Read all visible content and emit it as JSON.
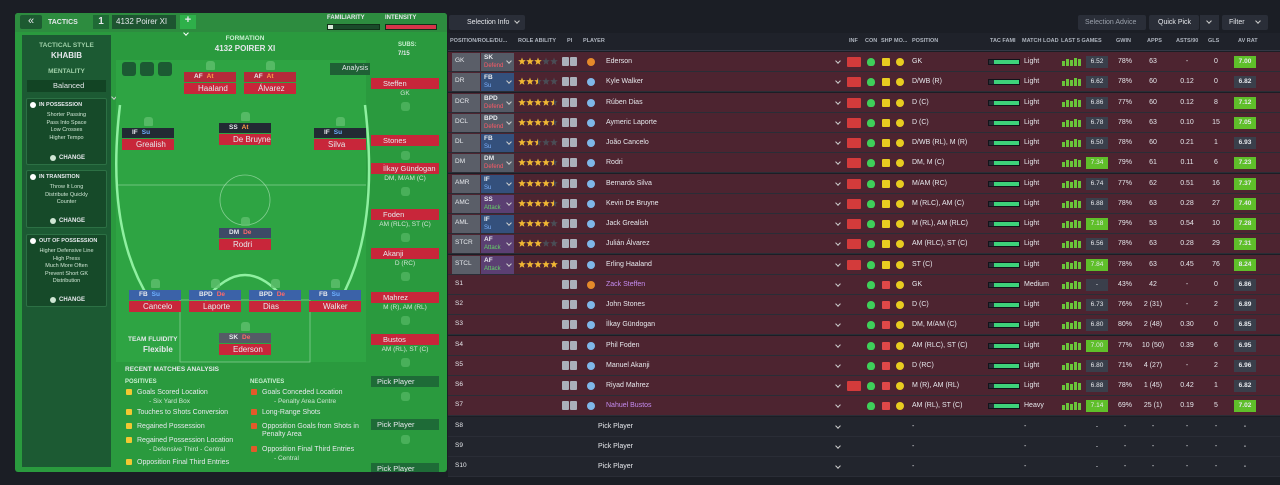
{
  "header": {
    "back": "«",
    "tactics": "TACTICS",
    "slot": "1",
    "tactic": "4132 Poirer XI",
    "add": "+",
    "familiarity": "FAMILIARITY",
    "intensity": "INTENSITY"
  },
  "sidebar": {
    "style_label": "TACTICAL STYLE",
    "style": "KHABIB",
    "mentality_label": "MENTALITY",
    "mentality": "Balanced",
    "phases": [
      {
        "title": "IN POSSESSION",
        "items": [
          "Shorter Passing",
          "Pass Into Space",
          "Low Crosses",
          "Higher Tempo"
        ],
        "button": "CHANGE"
      },
      {
        "title": "IN TRANSITION",
        "items": [
          "Throw It Long",
          "Distribute Quickly",
          "Counter"
        ],
        "button": "CHANGE"
      },
      {
        "title": "OUT OF POSSESSION",
        "items": [
          "Higher Defensive Line",
          "High Press",
          "Much More Often",
          "Prevent Short GK",
          "Distribution"
        ],
        "button": "CHANGE"
      }
    ]
  },
  "pitch": {
    "label": "FORMATION",
    "name": "4132 POIRER XI",
    "analysis": "Analysis",
    "subs_label": "SUBS:",
    "subs_count": "7/15",
    "players": [
      {
        "role": "AF",
        "duty": "At",
        "name": "Haaland"
      },
      {
        "role": "AF",
        "duty": "At",
        "name": "Álvarez"
      },
      {
        "role": "IF",
        "duty": "Su",
        "name": "Grealish"
      },
      {
        "role": "SS",
        "duty": "At",
        "name": "De Bruyne"
      },
      {
        "role": "IF",
        "duty": "Su",
        "name": "Silva"
      },
      {
        "role": "DM",
        "duty": "De",
        "name": "Rodri"
      },
      {
        "role": "FB",
        "duty": "Su",
        "name": "Cancelo"
      },
      {
        "role": "BPD",
        "duty": "De",
        "name": "Laporte"
      },
      {
        "role": "BPD",
        "duty": "De",
        "name": "Dias"
      },
      {
        "role": "FB",
        "duty": "Su",
        "name": "Walker"
      },
      {
        "role": "SK",
        "duty": "De",
        "name": "Ederson"
      }
    ],
    "subs": [
      {
        "name": "Steffen",
        "position": "GK"
      },
      {
        "name": "Stones"
      },
      {
        "name": "İlkay Gündogan",
        "position": "DM, M/AM (C)"
      },
      {
        "name": "Foden",
        "position": "AM (RLC), ST (C)"
      },
      {
        "name": "Akanji",
        "position": "D (RC)"
      },
      {
        "name": "Mahrez",
        "position": "M (R), AM (RL)"
      },
      {
        "name": "Bustos",
        "position": "AM (RL), ST (C)"
      },
      {
        "name": "Pick Player"
      },
      {
        "name": "Pick Player"
      },
      {
        "name": "Pick Player"
      }
    ],
    "fluidity_label": "TEAM FLUIDITY",
    "fluidity": "Flexible"
  },
  "analysis": {
    "title": "RECENT MATCHES ANALYSIS",
    "positives_label": "POSITIVES",
    "negatives_label": "NEGATIVES",
    "positives": [
      {
        "text": "Goals Scored Location",
        "detail": "- Six Yard Box"
      },
      {
        "text": "Touches to Shots Conversion"
      },
      {
        "text": "Regained Possession"
      },
      {
        "text": "Regained Possession Location",
        "detail": "- Defensive Third - Central"
      },
      {
        "text": "Opposition Final Third Entries"
      }
    ],
    "negatives": [
      {
        "text": "Goals Conceded Location",
        "detail": "- Penalty Area Centre"
      },
      {
        "text": "Long-Range Shots"
      },
      {
        "text": "Opposition Goals from Shots in Penalty Area"
      },
      {
        "text": "Opposition Final Third Entries",
        "detail": "- Central"
      }
    ]
  },
  "toolbar": {
    "selection_info": "Selection Info",
    "selection_advice": "Selection Advice",
    "quick_pick": "Quick Pick",
    "filter": "Filter"
  },
  "table": {
    "columns": [
      "POSITION/ROLE/DU...",
      "ROLE ABILITY",
      "PI",
      "PLAYER",
      "INF",
      "CON",
      "SHP",
      "MO...",
      "POSITION",
      "TAC FAMI",
      "MATCH LOAD",
      "LAST 5 GAMES",
      "GWIN",
      "APPS",
      "ASTS/90",
      "GLS",
      "AV RAT"
    ],
    "rows": [
      {
        "pos": "GK",
        "role": "SK",
        "duty": "Defend",
        "stars": 3,
        "player": "Ederson",
        "position": "GK",
        "load": "Light",
        "rating": "6.52",
        "gwin": "78%",
        "apps": "63",
        "asts": "-",
        "gls": "0",
        "avrat": "7.00"
      },
      {
        "pos": "DR",
        "role": "FB",
        "duty": "Su",
        "stars": 2.5,
        "player": "Kyle Walker",
        "position": "D/WB (R)",
        "load": "Light",
        "rating": "6.62",
        "gwin": "78%",
        "apps": "60",
        "asts": "0.12",
        "gls": "0",
        "avrat": "6.82"
      },
      {
        "pos": "DCR",
        "role": "BPD",
        "duty": "Defend",
        "stars": 4.5,
        "player": "Rúben Dias",
        "position": "D (C)",
        "load": "Light",
        "rating": "6.86",
        "gwin": "77%",
        "apps": "60",
        "asts": "0.12",
        "gls": "8",
        "avrat": "7.12"
      },
      {
        "pos": "DCL",
        "role": "BPD",
        "duty": "Defend",
        "stars": 4.5,
        "player": "Aymeric Laporte",
        "position": "D (C)",
        "load": "Light",
        "rating": "6.78",
        "gwin": "78%",
        "apps": "63",
        "asts": "0.10",
        "gls": "15",
        "avrat": "7.05"
      },
      {
        "pos": "DL",
        "role": "FB",
        "duty": "Su",
        "stars": 2.5,
        "player": "João Cancelo",
        "position": "D/WB (RL), M (R)",
        "load": "Light",
        "rating": "6.50",
        "gwin": "78%",
        "apps": "60",
        "asts": "0.21",
        "gls": "1",
        "avrat": "6.93"
      },
      {
        "pos": "DM",
        "role": "DM",
        "duty": "Defend",
        "stars": 4.5,
        "player": "Rodri",
        "position": "DM, M (C)",
        "load": "Light",
        "rating": "7.34",
        "gwin": "79%",
        "apps": "61",
        "asts": "0.11",
        "gls": "6",
        "avrat": "7.23"
      },
      {
        "pos": "AMR",
        "role": "IF",
        "duty": "Su",
        "stars": 4.5,
        "player": "Bernardo Silva",
        "position": "M/AM (RC)",
        "load": "Light",
        "rating": "6.74",
        "gwin": "77%",
        "apps": "62",
        "asts": "0.51",
        "gls": "16",
        "avrat": "7.37"
      },
      {
        "pos": "AMC",
        "role": "SS",
        "duty": "Attack",
        "stars": 4.5,
        "player": "Kevin De Bruyne",
        "position": "M (RLC), AM (C)",
        "load": "Light",
        "rating": "6.88",
        "gwin": "78%",
        "apps": "63",
        "asts": "0.28",
        "gls": "27",
        "avrat": "7.40"
      },
      {
        "pos": "AML",
        "role": "IF",
        "duty": "Su",
        "stars": 4,
        "player": "Jack Grealish",
        "position": "M (RL), AM (RLC)",
        "load": "Light",
        "rating": "7.18",
        "gwin": "79%",
        "apps": "53",
        "asts": "0.54",
        "gls": "10",
        "avrat": "7.28"
      },
      {
        "pos": "STCR",
        "role": "AF",
        "duty": "Attack",
        "stars": 3,
        "player": "Julián Álvarez",
        "position": "AM (RLC), ST (C)",
        "load": "Light",
        "rating": "6.56",
        "gwin": "78%",
        "apps": "63",
        "asts": "0.28",
        "gls": "29",
        "avrat": "7.31"
      },
      {
        "pos": "STCL",
        "role": "AF",
        "duty": "Attack",
        "stars": 5,
        "player": "Erling Haaland",
        "position": "ST (C)",
        "load": "Light",
        "rating": "7.84",
        "gwin": "78%",
        "apps": "63",
        "asts": "0.45",
        "gls": "76",
        "avrat": "8.24"
      },
      {
        "pos": "S1",
        "player": "Zack Steffen",
        "color": "#c58cf0",
        "position": "GK",
        "load": "Medium",
        "rating": "-",
        "gwin": "43%",
        "apps": "42",
        "asts": "-",
        "gls": "0",
        "avrat": "6.86"
      },
      {
        "pos": "S2",
        "player": "John Stones",
        "position": "D (C)",
        "load": "Light",
        "rating": "6.73",
        "gwin": "76%",
        "apps": "2 (31)",
        "asts": "-",
        "gls": "2",
        "avrat": "6.89"
      },
      {
        "pos": "S3",
        "player": "İlkay Gündogan",
        "position": "DM, M/AM (C)",
        "load": "Light",
        "rating": "6.80",
        "gwin": "80%",
        "apps": "2 (48)",
        "asts": "0.30",
        "gls": "0",
        "avrat": "6.85"
      },
      {
        "pos": "S4",
        "player": "Phil Foden",
        "position": "AM (RLC), ST (C)",
        "load": "Light",
        "rating": "7.00",
        "gwin": "77%",
        "apps": "10 (50)",
        "asts": "0.39",
        "gls": "6",
        "avrat": "6.95"
      },
      {
        "pos": "S5",
        "player": "Manuel Akanji",
        "position": "D (RC)",
        "load": "Light",
        "rating": "6.80",
        "gwin": "71%",
        "apps": "4 (27)",
        "asts": "-",
        "gls": "2",
        "avrat": "6.96"
      },
      {
        "pos": "S6",
        "player": "Riyad Mahrez",
        "position": "M (R), AM (RL)",
        "load": "Light",
        "rating": "6.88",
        "gwin": "78%",
        "apps": "1 (45)",
        "asts": "0.42",
        "gls": "1",
        "avrat": "6.82"
      },
      {
        "pos": "S7",
        "player": "Nahuel Bustos",
        "color": "#c58cf0",
        "position": "AM (RL), ST (C)",
        "load": "Heavy",
        "rating": "7.14",
        "gwin": "69%",
        "apps": "25 (1)",
        "asts": "0.19",
        "gls": "5",
        "avrat": "7.02"
      },
      {
        "pos": "S8",
        "player": "Pick Player",
        "position": "-",
        "load": "-",
        "rating": "-",
        "gwin": "-",
        "apps": "-",
        "asts": "-",
        "gls": "-",
        "avrat": "-"
      },
      {
        "pos": "S9",
        "player": "Pick Player",
        "position": "-",
        "load": "-",
        "rating": "-",
        "gwin": "-",
        "apps": "-",
        "asts": "-",
        "gls": "-",
        "avrat": "-"
      },
      {
        "pos": "S10",
        "player": "Pick Player",
        "position": "-",
        "load": "-",
        "rating": "-",
        "gwin": "-",
        "apps": "-",
        "asts": "-",
        "gls": "-",
        "avrat": "-"
      }
    ]
  }
}
